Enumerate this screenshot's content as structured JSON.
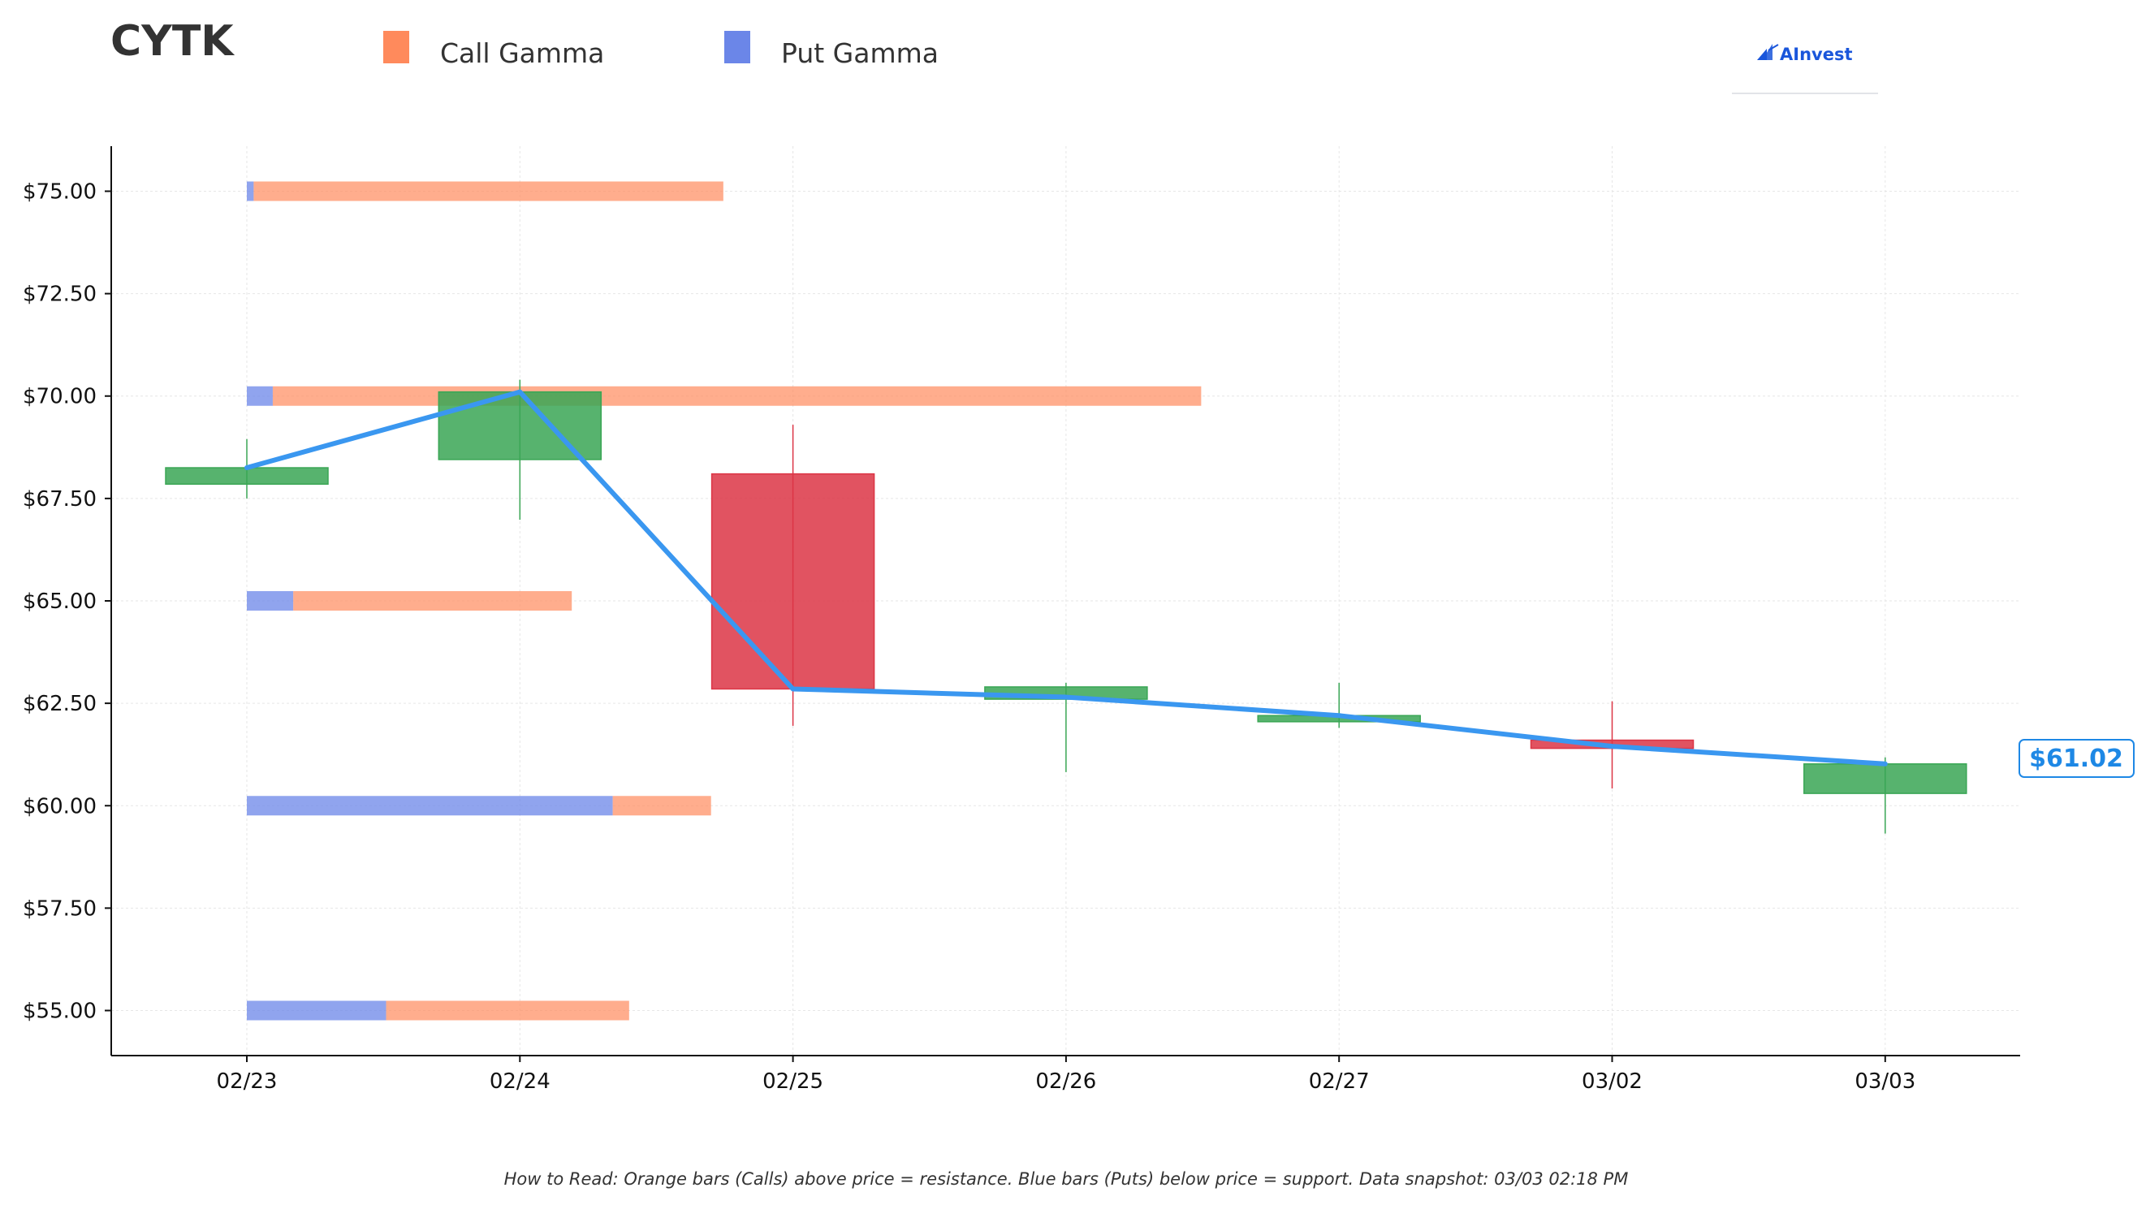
{
  "ticker": "CYTK",
  "logo_text": "AInvest",
  "footnote": "How to Read: Orange bars (Calls) above price = resistance. Blue bars (Puts) below price = support. Data snapshot: 03/03 02:18 PM",
  "colors": {
    "call": "#ff8a5c",
    "put": "#6b86e8",
    "up": "#3aa655",
    "down": "#dc3545",
    "price_line": "#3a97f0",
    "accent": "#1e88e5"
  },
  "chart_data": {
    "type": "candlestick",
    "title": "CYTK",
    "legend": [
      {
        "name": "Call Gamma",
        "color": "#ff8a5c"
      },
      {
        "name": "Put Gamma",
        "color": "#6b86e8"
      }
    ],
    "legend_position": "top",
    "x": [
      "02/23",
      "02/24",
      "02/25",
      "02/26",
      "02/27",
      "03/02",
      "03/03"
    ],
    "y_ticks": [
      "$55.00",
      "$57.50",
      "$60.00",
      "$62.50",
      "$65.00",
      "$67.50",
      "$70.00",
      "$72.50",
      "$75.00"
    ],
    "y_tick_values": [
      55,
      57.5,
      60,
      62.5,
      65,
      67.5,
      70,
      72.5,
      75
    ],
    "ylim": [
      53.9,
      76.1
    ],
    "grid": true,
    "candles": [
      {
        "date": "02/23",
        "open": 67.85,
        "close": 68.25,
        "high": 68.95,
        "low": 67.5
      },
      {
        "date": "02/24",
        "open": 68.45,
        "close": 70.1,
        "high": 70.4,
        "low": 66.98
      },
      {
        "date": "02/25",
        "open": 68.1,
        "close": 62.85,
        "high": 69.3,
        "low": 61.95
      },
      {
        "date": "02/26",
        "open": 62.6,
        "close": 62.9,
        "high": 63.0,
        "low": 60.82
      },
      {
        "date": "02/27",
        "open": 62.05,
        "close": 62.2,
        "high": 63.0,
        "low": 61.9
      },
      {
        "date": "03/02",
        "open": 61.6,
        "close": 61.4,
        "high": 62.55,
        "low": 60.42
      },
      {
        "date": "03/03",
        "open": 60.3,
        "close": 61.02,
        "high": 61.18,
        "low": 59.32
      }
    ],
    "price_line": [
      68.25,
      70.1,
      62.85,
      62.65,
      62.2,
      61.45,
      61.02
    ],
    "gamma_bars": [
      {
        "strike": 75,
        "put": 0.025,
        "call": 1.72
      },
      {
        "strike": 70,
        "put": 0.095,
        "call": 3.4
      },
      {
        "strike": 65,
        "put": 0.17,
        "call": 1.02
      },
      {
        "strike": 60,
        "put": 1.34,
        "call": 0.36
      },
      {
        "strike": 55,
        "put": 0.51,
        "call": 0.89
      }
    ],
    "last_price_label": "$61.02"
  }
}
